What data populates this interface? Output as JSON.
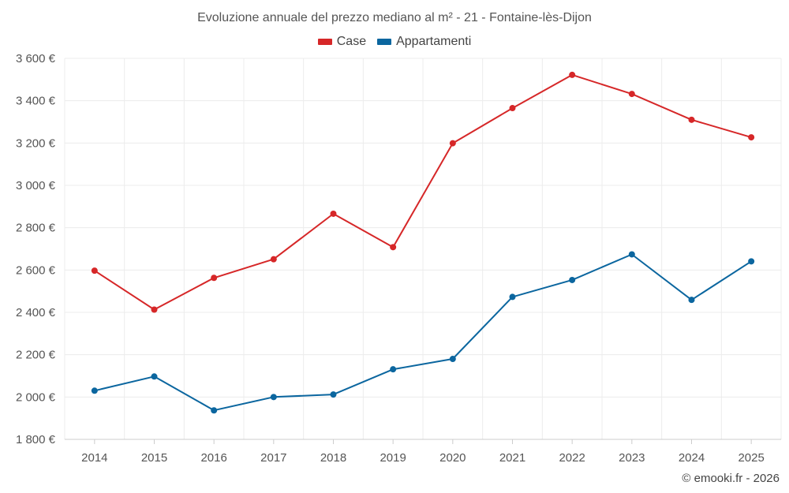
{
  "chart_data": {
    "type": "line",
    "title": "Evoluzione annuale del prezzo mediano al m² - 21 - Fontaine-lès-Dijon",
    "categories": [
      "2014",
      "2015",
      "2016",
      "2017",
      "2018",
      "2019",
      "2020",
      "2021",
      "2022",
      "2023",
      "2024",
      "2025"
    ],
    "series": [
      {
        "name": "Case",
        "color": "#d62728",
        "values": [
          2597,
          2413,
          2563,
          2651,
          2866,
          2708,
          3199,
          3365,
          3522,
          3432,
          3310,
          3227
        ]
      },
      {
        "name": "Appartamenti",
        "color": "#0b669f",
        "values": [
          2030,
          2097,
          1937,
          2000,
          2012,
          2131,
          2180,
          2473,
          2553,
          2674,
          2459,
          2641
        ]
      }
    ],
    "ylim": [
      1800,
      3600
    ],
    "yticks": [
      1800,
      2000,
      2200,
      2400,
      2600,
      2800,
      3000,
      3200,
      3400,
      3600
    ],
    "ytick_labels": [
      "1 800 €",
      "2 000 €",
      "2 200 €",
      "2 400 €",
      "2 600 €",
      "2 800 €",
      "3 000 €",
      "3 200 €",
      "3 400 €",
      "3 600 €"
    ],
    "xlabel": "",
    "ylabel": "",
    "grid": true,
    "legend_position": "top-center"
  },
  "credit": "© emooki.fr - 2026"
}
